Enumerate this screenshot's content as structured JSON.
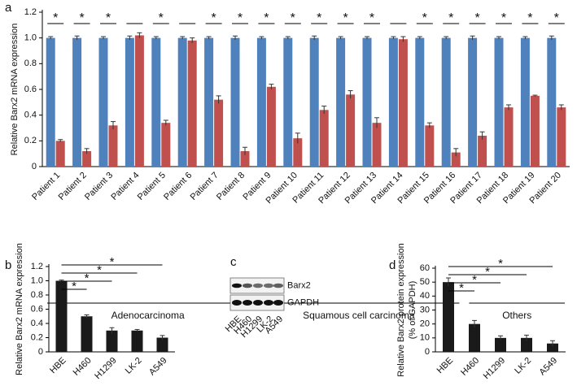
{
  "chart_data": [
    {
      "type": "bar",
      "panel_label": "a",
      "ylabel": "Relative Barx2 mRNA expression",
      "categories": [
        "Patient 1",
        "Patient 2",
        "Patient 3",
        "Patient 4",
        "Patient 5",
        "Patient 6",
        "Patient 7",
        "Patient 8",
        "Patient 9",
        "Patient 10",
        "Patient 11",
        "Patient 12",
        "Patient 13",
        "Patient 14",
        "Patient 15",
        "Patient 16",
        "Patient 17",
        "Patient 18",
        "Patient 19",
        "Patient 20"
      ],
      "series": [
        {
          "color": "#4f81bd",
          "values": [
            1,
            1,
            1,
            1,
            1,
            1,
            1,
            1,
            1,
            1,
            1,
            1,
            1,
            1,
            1,
            1,
            1,
            1,
            1,
            1
          ],
          "errors": [
            0.01,
            0.015,
            0.01,
            0.015,
            0.01,
            0.01,
            0.01,
            0.015,
            0.01,
            0.01,
            0.015,
            0.01,
            0.01,
            0.01,
            0.01,
            0.01,
            0.015,
            0.01,
            0.01,
            0.015
          ]
        },
        {
          "color": "#c0504d",
          "values": [
            0.2,
            0.12,
            0.32,
            1.02,
            0.34,
            0.98,
            0.52,
            0.12,
            0.62,
            0.22,
            0.44,
            0.56,
            0.34,
            0.99,
            0.32,
            0.11,
            0.24,
            0.46,
            0.55,
            0.46
          ],
          "errors": [
            0.01,
            0.02,
            0.03,
            0.02,
            0.02,
            0.02,
            0.03,
            0.03,
            0.02,
            0.04,
            0.03,
            0.03,
            0.04,
            0.02,
            0.02,
            0.03,
            0.03,
            0.02,
            0.005,
            0.02
          ]
        }
      ],
      "ylim": [
        0,
        1.2
      ],
      "yticks": [
        0,
        0.2,
        0.4,
        0.6,
        0.8,
        {
          "value": 1,
          "label": "1.0"
        },
        1.2
      ],
      "significance": [
        "*",
        "*",
        "*",
        null,
        "*",
        null,
        "*",
        "*",
        "*",
        "*",
        "*",
        "*",
        "*",
        null,
        "*",
        "*",
        "*",
        "*",
        "*",
        "*"
      ],
      "groups": [
        "Adenocarcinoma",
        "Squamous cell carcinoma",
        "Others"
      ]
    },
    {
      "type": "bar",
      "panel_label": "b",
      "ylabel": "Relative Barx2 mRNA expression",
      "categories": [
        "HBE",
        "H460",
        "H1299",
        "LK-2",
        "A549"
      ],
      "series": [
        {
          "color": "#1a1a1a",
          "values": [
            1.0,
            0.5,
            0.3,
            0.3,
            0.2
          ],
          "errors": [
            0.01,
            0.02,
            0.04,
            0.015,
            0.03
          ]
        }
      ],
      "ylim": [
        0,
        1.2
      ],
      "yticks": [
        0,
        0.2,
        0.4,
        0.6,
        0.8,
        {
          "value": 1,
          "label": "1.0"
        },
        1.2
      ],
      "comparisons": [
        "*",
        "*",
        "*",
        "*"
      ]
    },
    {
      "type": "bar",
      "panel_label": "d",
      "ylabel": [
        "Relative Barx2 protein expression",
        "(% of GAPDH)"
      ],
      "categories": [
        "HBE",
        "H460",
        "H1299",
        "LK-2",
        "A549"
      ],
      "series": [
        {
          "color": "#1a1a1a",
          "values": [
            50,
            20,
            10,
            10,
            6
          ],
          "errors": [
            3,
            2.5,
            1.5,
            2,
            2
          ]
        }
      ],
      "ylim": [
        0,
        60
      ],
      "yticks": [
        0,
        10,
        20,
        30,
        40,
        50,
        60
      ],
      "comparisons": [
        "*",
        "*",
        "*",
        "*"
      ]
    }
  ],
  "blot": {
    "panel_label": "c",
    "bands": [
      "Barx2",
      "GAPDH"
    ],
    "lanes": [
      "HBE",
      "H460",
      "H1299",
      "LK-2",
      "A549"
    ]
  }
}
